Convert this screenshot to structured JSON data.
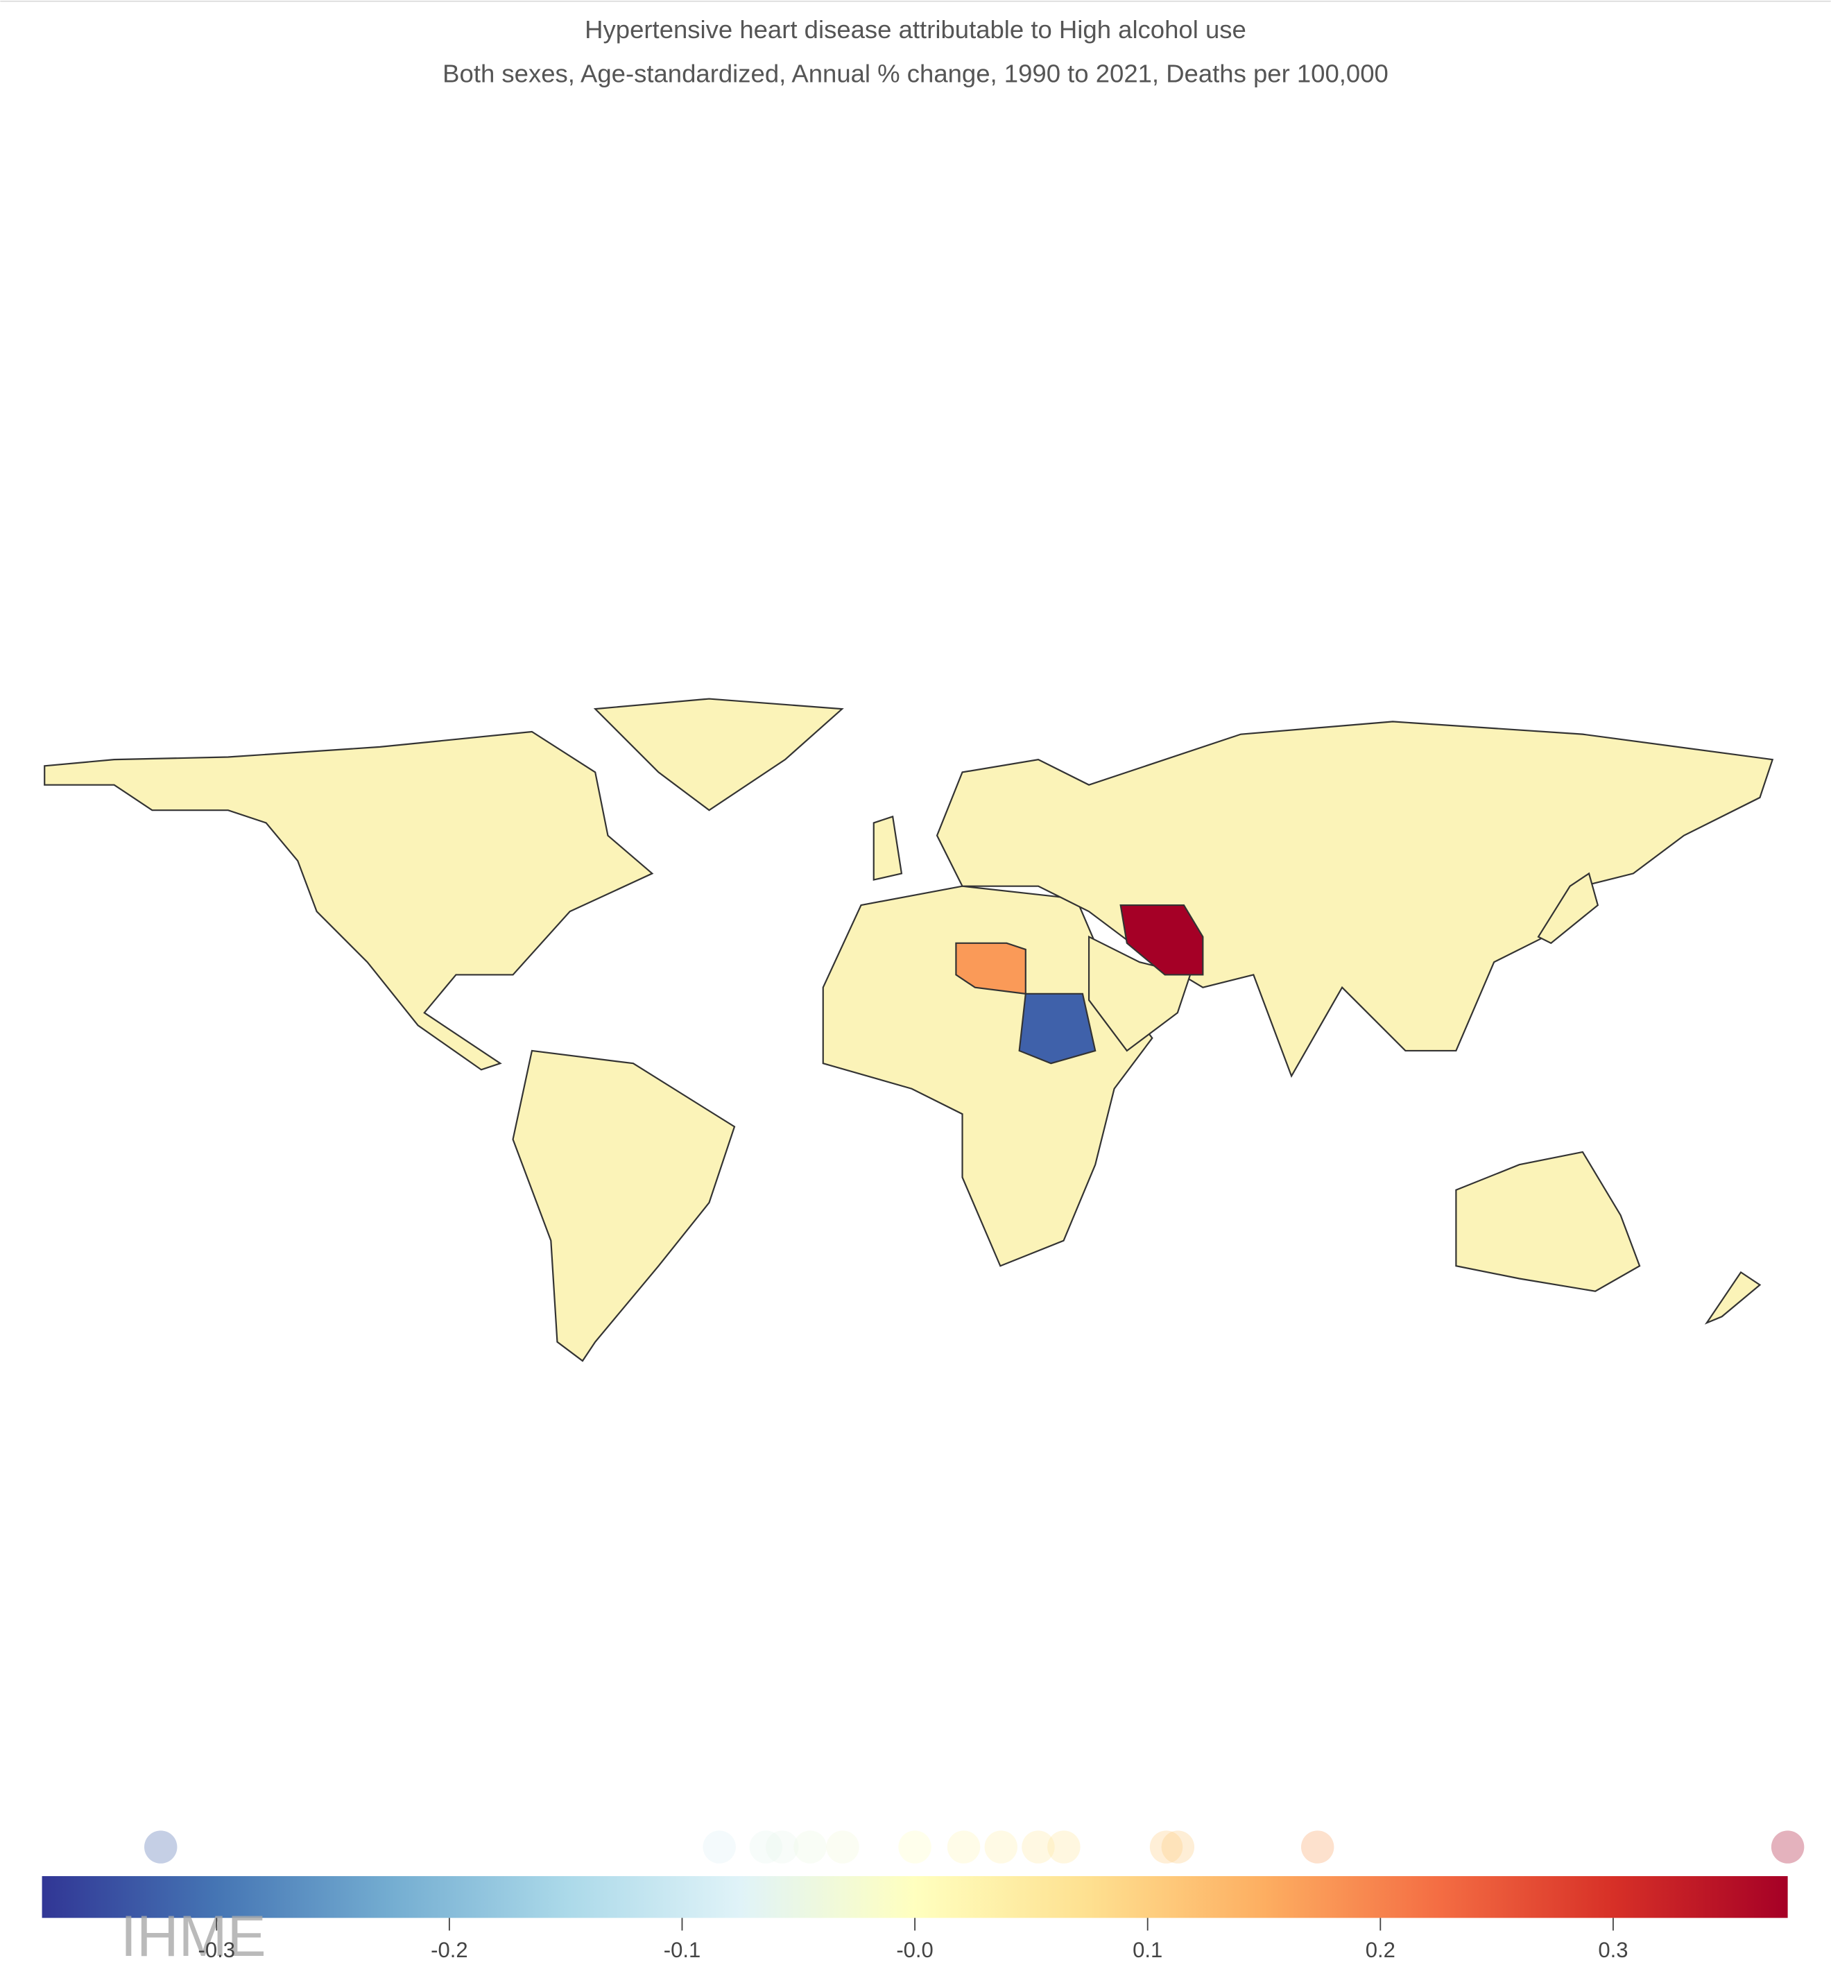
{
  "chart_data": {
    "type": "choropleth",
    "title": "Hypertensive heart disease attributable to High alcohol use",
    "subtitle": "Both sexes, Age-standardized, Annual % change, 1990 to 2021, Deaths per 100,000",
    "colorscale": [
      "#313695",
      "#4575b4",
      "#74add1",
      "#abd9e9",
      "#e0f3f8",
      "#ffffbf",
      "#fee090",
      "#fdae61",
      "#f46d43",
      "#d73027",
      "#a50026"
    ],
    "xlim": [
      -0.375,
      0.375
    ],
    "xticks": [
      -0.3,
      -0.2,
      -0.1,
      {
        "value": 0,
        "label": "-0.0"
      },
      0.1,
      0.2,
      0.3
    ],
    "markers": [
      -0.324,
      -0.084,
      -0.064,
      -0.057,
      -0.045,
      -0.031,
      0,
      0.021,
      0.037,
      0.053,
      0.064,
      0.108,
      0.113,
      0.173,
      0.375
    ],
    "watermark": "IHME"
  }
}
